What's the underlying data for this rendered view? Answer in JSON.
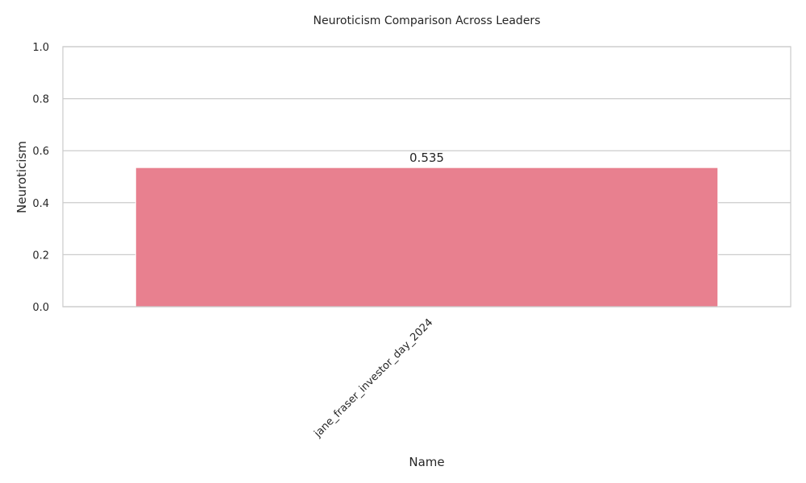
{
  "chart_data": {
    "type": "bar",
    "title": "Neuroticism Comparison Across Leaders",
    "xlabel": "Name",
    "ylabel": "Neuroticism",
    "categories": [
      "jane_fraser_investor_day_2024"
    ],
    "values": [
      0.535
    ],
    "data_labels": [
      "0.535"
    ],
    "ylim": [
      0,
      1
    ],
    "yticks": [
      0,
      0.2,
      0.4,
      0.6,
      0.8,
      1.0
    ],
    "ytick_labels": [
      "0.0",
      "0.2",
      "0.4",
      "0.6",
      "0.8",
      "1.0"
    ],
    "grid": "horizontal",
    "bar_color": "#e8808f",
    "grid_color": "#cccccc",
    "spine_color": "#cccccc"
  }
}
